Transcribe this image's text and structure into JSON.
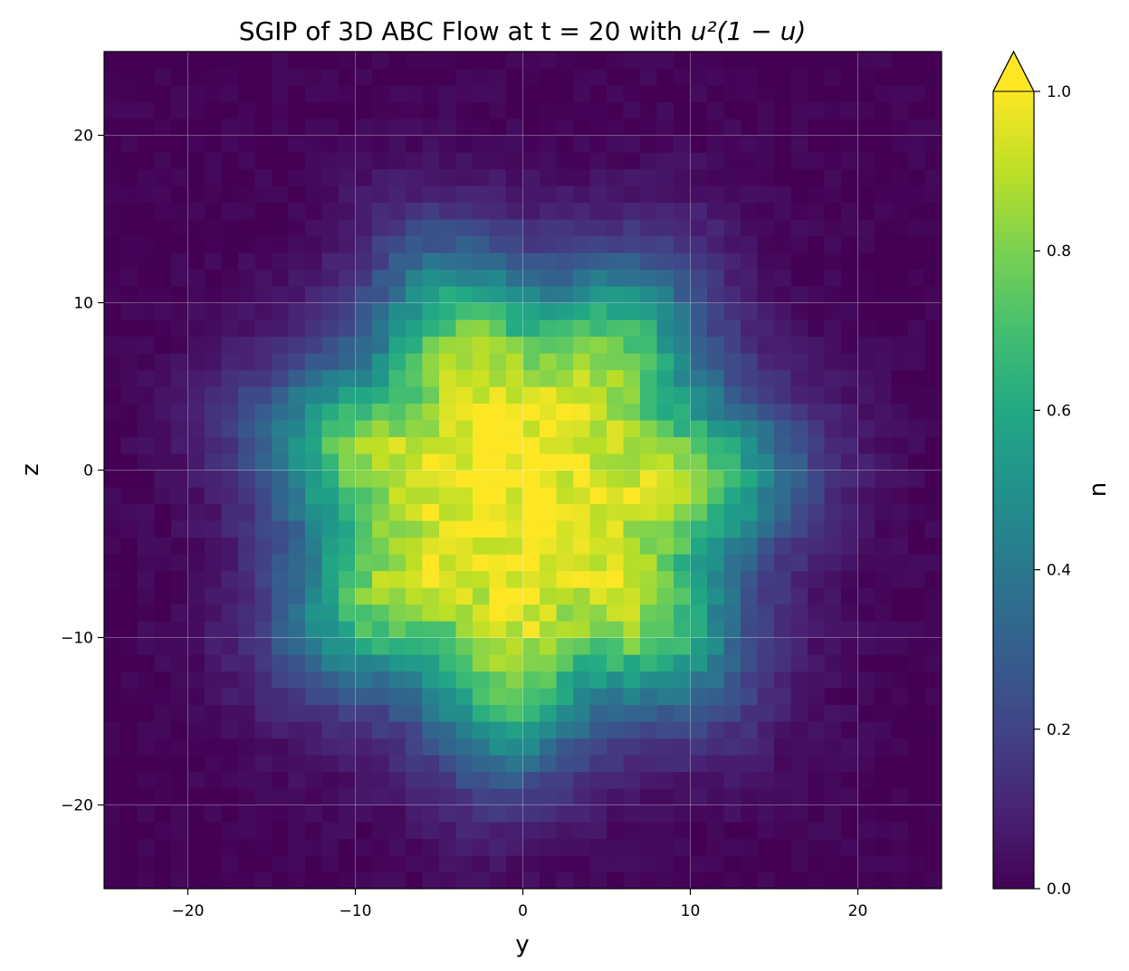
{
  "chart_data": {
    "type": "heatmap",
    "title": {
      "prefix": "SGIP of 3D ABC Flow at t = 20 with ",
      "math": "u²(1 − u)"
    },
    "xlabel": "y",
    "ylabel": "z",
    "xlim": [
      -25,
      25
    ],
    "ylim": [
      -25,
      25
    ],
    "x_ticks": [
      -20,
      -10,
      0,
      10,
      20
    ],
    "x_tick_labels": [
      "−20",
      "−10",
      "0",
      "10",
      "20"
    ],
    "y_ticks": [
      -20,
      -10,
      0,
      10,
      20
    ],
    "y_tick_labels": [
      "−20",
      "−10",
      "0",
      "10",
      "20"
    ],
    "grid": true,
    "colormap": "viridis",
    "grid_resolution": [
      50,
      50
    ],
    "field": {
      "center": [
        0,
        -2
      ],
      "radius": 13,
      "edge_width": 2.5,
      "lobes": 7,
      "lobe_amplitude": 0.09,
      "noise": 0.06
    },
    "colorbar": {
      "label": "u",
      "range": [
        0,
        1
      ],
      "ticks": [
        0,
        0.2,
        0.4,
        0.6,
        0.8,
        1.0
      ],
      "tick_labels": [
        "0.0",
        "0.2",
        "0.4",
        "0.6",
        "0.8",
        "1.0"
      ],
      "extend": "max"
    }
  }
}
